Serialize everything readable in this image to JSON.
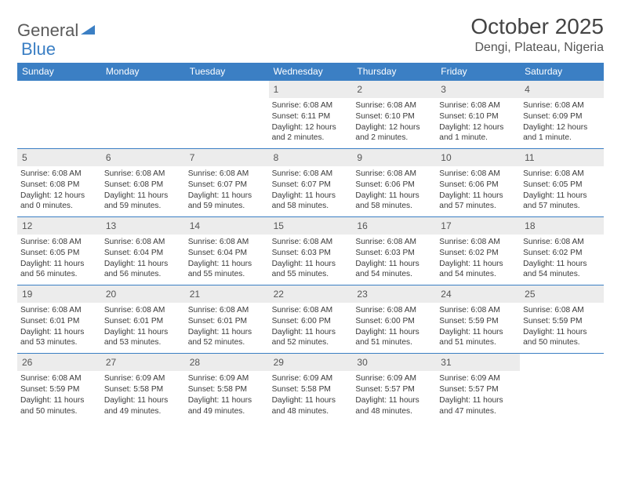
{
  "logo": {
    "text1": "General",
    "text2": "Blue"
  },
  "title": "October 2025",
  "location": "Dengi, Plateau, Nigeria",
  "colors": {
    "header_bg": "#3b7fc4",
    "header_fg": "#ffffff",
    "daynum_bg": "#ececec",
    "rule": "#3b7fc4",
    "text": "#333333"
  },
  "dayNames": [
    "Sunday",
    "Monday",
    "Tuesday",
    "Wednesday",
    "Thursday",
    "Friday",
    "Saturday"
  ],
  "grid": {
    "leadingBlanks": 3,
    "trailingBlanks": 1
  },
  "days": [
    {
      "n": 1,
      "sunrise": "6:08 AM",
      "sunset": "6:11 PM",
      "daylight": "12 hours and 2 minutes."
    },
    {
      "n": 2,
      "sunrise": "6:08 AM",
      "sunset": "6:10 PM",
      "daylight": "12 hours and 2 minutes."
    },
    {
      "n": 3,
      "sunrise": "6:08 AM",
      "sunset": "6:10 PM",
      "daylight": "12 hours and 1 minute."
    },
    {
      "n": 4,
      "sunrise": "6:08 AM",
      "sunset": "6:09 PM",
      "daylight": "12 hours and 1 minute."
    },
    {
      "n": 5,
      "sunrise": "6:08 AM",
      "sunset": "6:08 PM",
      "daylight": "12 hours and 0 minutes."
    },
    {
      "n": 6,
      "sunrise": "6:08 AM",
      "sunset": "6:08 PM",
      "daylight": "11 hours and 59 minutes."
    },
    {
      "n": 7,
      "sunrise": "6:08 AM",
      "sunset": "6:07 PM",
      "daylight": "11 hours and 59 minutes."
    },
    {
      "n": 8,
      "sunrise": "6:08 AM",
      "sunset": "6:07 PM",
      "daylight": "11 hours and 58 minutes."
    },
    {
      "n": 9,
      "sunrise": "6:08 AM",
      "sunset": "6:06 PM",
      "daylight": "11 hours and 58 minutes."
    },
    {
      "n": 10,
      "sunrise": "6:08 AM",
      "sunset": "6:06 PM",
      "daylight": "11 hours and 57 minutes."
    },
    {
      "n": 11,
      "sunrise": "6:08 AM",
      "sunset": "6:05 PM",
      "daylight": "11 hours and 57 minutes."
    },
    {
      "n": 12,
      "sunrise": "6:08 AM",
      "sunset": "6:05 PM",
      "daylight": "11 hours and 56 minutes."
    },
    {
      "n": 13,
      "sunrise": "6:08 AM",
      "sunset": "6:04 PM",
      "daylight": "11 hours and 56 minutes."
    },
    {
      "n": 14,
      "sunrise": "6:08 AM",
      "sunset": "6:04 PM",
      "daylight": "11 hours and 55 minutes."
    },
    {
      "n": 15,
      "sunrise": "6:08 AM",
      "sunset": "6:03 PM",
      "daylight": "11 hours and 55 minutes."
    },
    {
      "n": 16,
      "sunrise": "6:08 AM",
      "sunset": "6:03 PM",
      "daylight": "11 hours and 54 minutes."
    },
    {
      "n": 17,
      "sunrise": "6:08 AM",
      "sunset": "6:02 PM",
      "daylight": "11 hours and 54 minutes."
    },
    {
      "n": 18,
      "sunrise": "6:08 AM",
      "sunset": "6:02 PM",
      "daylight": "11 hours and 54 minutes."
    },
    {
      "n": 19,
      "sunrise": "6:08 AM",
      "sunset": "6:01 PM",
      "daylight": "11 hours and 53 minutes."
    },
    {
      "n": 20,
      "sunrise": "6:08 AM",
      "sunset": "6:01 PM",
      "daylight": "11 hours and 53 minutes."
    },
    {
      "n": 21,
      "sunrise": "6:08 AM",
      "sunset": "6:01 PM",
      "daylight": "11 hours and 52 minutes."
    },
    {
      "n": 22,
      "sunrise": "6:08 AM",
      "sunset": "6:00 PM",
      "daylight": "11 hours and 52 minutes."
    },
    {
      "n": 23,
      "sunrise": "6:08 AM",
      "sunset": "6:00 PM",
      "daylight": "11 hours and 51 minutes."
    },
    {
      "n": 24,
      "sunrise": "6:08 AM",
      "sunset": "5:59 PM",
      "daylight": "11 hours and 51 minutes."
    },
    {
      "n": 25,
      "sunrise": "6:08 AM",
      "sunset": "5:59 PM",
      "daylight": "11 hours and 50 minutes."
    },
    {
      "n": 26,
      "sunrise": "6:08 AM",
      "sunset": "5:59 PM",
      "daylight": "11 hours and 50 minutes."
    },
    {
      "n": 27,
      "sunrise": "6:09 AM",
      "sunset": "5:58 PM",
      "daylight": "11 hours and 49 minutes."
    },
    {
      "n": 28,
      "sunrise": "6:09 AM",
      "sunset": "5:58 PM",
      "daylight": "11 hours and 49 minutes."
    },
    {
      "n": 29,
      "sunrise": "6:09 AM",
      "sunset": "5:58 PM",
      "daylight": "11 hours and 48 minutes."
    },
    {
      "n": 30,
      "sunrise": "6:09 AM",
      "sunset": "5:57 PM",
      "daylight": "11 hours and 48 minutes."
    },
    {
      "n": 31,
      "sunrise": "6:09 AM",
      "sunset": "5:57 PM",
      "daylight": "11 hours and 47 minutes."
    }
  ],
  "labels": {
    "sunrise": "Sunrise: ",
    "sunset": "Sunset: ",
    "daylight": "Daylight: "
  }
}
